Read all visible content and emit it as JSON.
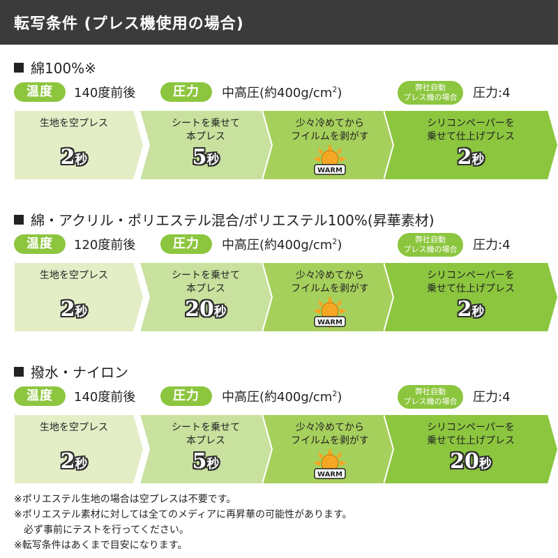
{
  "header": {
    "title": "転写条件 (プレス機使用の場合)"
  },
  "labels": {
    "temp": "温度",
    "pressure": "圧力",
    "machine_line1": "弊社自動",
    "machine_line2": "プレス機の場合",
    "pressure_unit_prefix": "中高圧(約400g/cm",
    "pressure_unit_sup": "2",
    "pressure_unit_suffix": ")",
    "machine_value": "圧力:4",
    "time_unit": "秒",
    "warm_text": "WARM"
  },
  "sections": [
    {
      "title": "綿100%※",
      "temperature": "140度前後",
      "steps": [
        {
          "line1": "生地を空プレス",
          "line2": "",
          "time": "2"
        },
        {
          "line1": "シートを乗せて",
          "line2": "本プレス",
          "time": "5"
        },
        {
          "line1": "少々冷めてから",
          "line2": "フイルムを剥がす",
          "time": ""
        },
        {
          "line1": "シリコンペーパーを",
          "line2": "乗せて仕上げプレス",
          "time": "2"
        }
      ]
    },
    {
      "title": "綿・アクリル・ポリエステル混合/ポリエステル100%(昇華素材)",
      "temperature": "120度前後",
      "steps": [
        {
          "line1": "生地を空プレス",
          "line2": "",
          "time": "2"
        },
        {
          "line1": "シートを乗せて",
          "line2": "本プレス",
          "time": "20"
        },
        {
          "line1": "少々冷めてから",
          "line2": "フイルムを剥がす",
          "time": ""
        },
        {
          "line1": "シリコンペーパーを",
          "line2": "乗せて仕上げプレス",
          "time": "2"
        }
      ]
    },
    {
      "title": "撥水・ナイロン",
      "temperature": "140度前後",
      "steps": [
        {
          "line1": "生地を空プレス",
          "line2": "",
          "time": "2"
        },
        {
          "line1": "シートを乗せて",
          "line2": "本プレス",
          "time": "5"
        },
        {
          "line1": "少々冷めてから",
          "line2": "フイルムを剥がす",
          "time": ""
        },
        {
          "line1": "シリコンペーパーを",
          "line2": "乗せて仕上げプレス",
          "time": "20"
        }
      ]
    }
  ],
  "notes": [
    "※ポリエステル生地の場合は空プレスは不要です。",
    "※ポリエステル素材に対しては全てのメディアに再昇華の可能性があります。",
    "　必ず事前にテストを行ってください。",
    "※転写条件はあくまで目安になります。"
  ],
  "colors": {
    "header_bg": "#3b3b3b",
    "accent_green": "#8cc63f",
    "step_colors": [
      "#e3edc6",
      "#c8e19e",
      "#a6d05c",
      "#8cc63f"
    ],
    "warm_sun": "#f5a623"
  }
}
